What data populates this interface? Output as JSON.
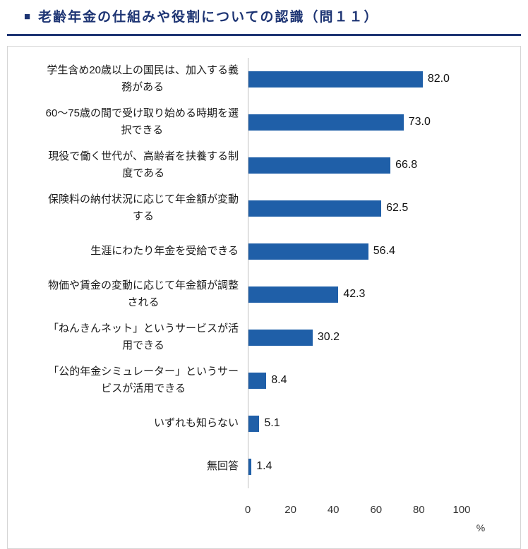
{
  "header": {
    "bullet": "■",
    "title": "老齢年金の仕組みや役割についての認識（問１１）"
  },
  "chart_data": {
    "type": "bar",
    "orientation": "horizontal",
    "title": "老齢年金の仕組みや役割についての認識（問１１）",
    "categories": [
      "学生含め20歳以上の国民は、加入する義務がある",
      "60〜75歳の間で受け取り始める時期を選択できる",
      "現役で働く世代が、高齢者を扶養する制度である",
      "保険料の納付状況に応じて年金額が変動する",
      "生涯にわたり年金を受給できる",
      "物価や賃金の変動に応じて年金額が調整される",
      "「ねんきんネット」というサービスが活用できる",
      "「公的年金シミュレーター」というサービスが活用できる",
      "いずれも知らない",
      "無回答"
    ],
    "categories_display": [
      "学生含め20歳以上の国民は、加入する義\n務がある",
      "60〜75歳の間で受け取り始める時期を選\n択できる",
      "現役で働く世代が、高齢者を扶養する制\n度である",
      "保険料の納付状況に応じて年金額が変動\nする",
      "生涯にわたり年金を受給できる",
      "物価や賃金の変動に応じて年金額が調整\nされる",
      "「ねんきんネット」というサービスが活\n用できる",
      "「公的年金シミュレーター」というサー\nビスが活用できる",
      "いずれも知らない",
      "無回答"
    ],
    "values": [
      82.0,
      73.0,
      66.8,
      62.5,
      56.4,
      42.3,
      30.2,
      8.4,
      5.1,
      1.4
    ],
    "value_labels": [
      "82.0",
      "73.0",
      "66.8",
      "62.5",
      "56.4",
      "42.3",
      "30.2",
      "8.4",
      "5.1",
      "1.4"
    ],
    "xlim": [
      0,
      100
    ],
    "x_ticks": [
      0,
      20,
      40,
      60,
      80,
      100
    ],
    "x_unit": "%",
    "grid": false,
    "legend": false
  },
  "colors": {
    "title_color": "#1d3473",
    "bar_color": "#1f5fa8",
    "axis_line": "#bfbfbf",
    "box_border": "#d6d6d6"
  }
}
